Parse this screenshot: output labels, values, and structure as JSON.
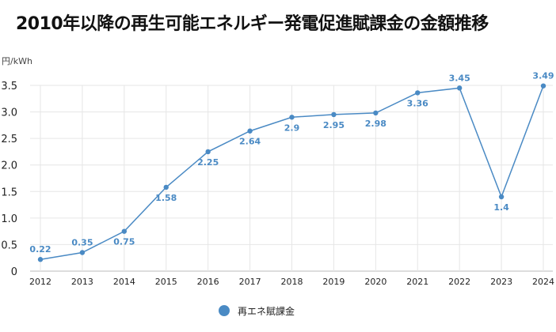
{
  "chart_data": {
    "type": "line",
    "title": "2010年以降の再生可能エネルギー発電促進賦課金の金額推移",
    "ylabel": "円/kWh",
    "xlabel": "",
    "x": [
      "2012",
      "2013",
      "2014",
      "2015",
      "2016",
      "2017",
      "2018",
      "2019",
      "2020",
      "2021",
      "2022",
      "2023",
      "2024"
    ],
    "series": [
      {
        "name": "再エネ賦課金",
        "values": [
          0.22,
          0.35,
          0.75,
          1.58,
          2.25,
          2.64,
          2.9,
          2.95,
          2.98,
          3.36,
          3.45,
          1.4,
          3.49
        ]
      }
    ],
    "labels": [
      "0.22",
      "0.35",
      "0.75",
      "1.58",
      "2.25",
      "2.64",
      "2.9",
      "2.95",
      "2.98",
      "3.36",
      "3.45",
      "1.4",
      "3.49"
    ],
    "yticks": [
      "0",
      "0.5",
      "1.0",
      "1.5",
      "2.0",
      "2.5",
      "3.0",
      "3.5"
    ],
    "ylim": [
      0,
      3.5
    ],
    "grid": true,
    "legend_position": "bottom",
    "color": "#4a8ac4"
  }
}
